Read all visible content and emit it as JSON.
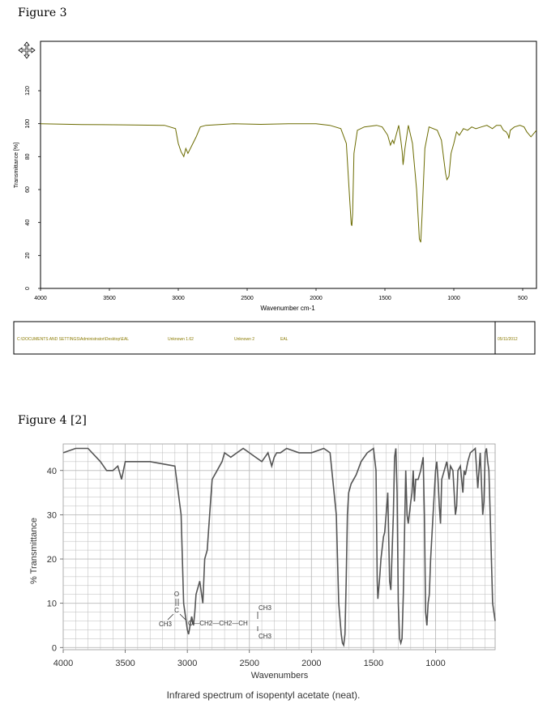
{
  "figure3": {
    "caption": "Figure 3",
    "chart_data": {
      "type": "line",
      "xlabel": "Wavenumber cm-1",
      "ylabel": "Transmittance [%]",
      "xlim": [
        4000,
        400
      ],
      "ylim": [
        0,
        150
      ],
      "x_reversed": true,
      "xticks": [
        "4000",
        "3500",
        "3000",
        "2500",
        "2000",
        "1500",
        "1000",
        "500"
      ],
      "yticks": [
        "0",
        "20",
        "40",
        "60",
        "80",
        "100",
        "120"
      ],
      "color": "#6b6b00",
      "series": [
        {
          "x": [
            4000,
            3700,
            3400,
            3100,
            3020,
            3000,
            2980,
            2960,
            2945,
            2930,
            2900,
            2870,
            2840,
            2800,
            2600,
            2400,
            2200,
            2000,
            1900,
            1820,
            1780,
            1760,
            1745,
            1740,
            1735,
            1725,
            1700,
            1650,
            1560,
            1520,
            1480,
            1460,
            1445,
            1435,
            1400,
            1385,
            1375,
            1368,
            1355,
            1330,
            1300,
            1270,
            1250,
            1240,
            1230,
            1210,
            1180,
            1120,
            1090,
            1060,
            1050,
            1035,
            1020,
            1000,
            980,
            960,
            930,
            900,
            870,
            840,
            800,
            760,
            720,
            690,
            660,
            640,
            620,
            605,
            600,
            590,
            560,
            520,
            490,
            470,
            440,
            400
          ],
          "y": [
            100,
            99.5,
            99.3,
            99,
            97,
            88,
            83,
            80,
            85,
            82,
            87,
            92,
            98,
            99,
            100,
            99.6,
            100,
            100,
            99,
            97,
            88,
            60,
            39,
            38,
            45,
            82,
            96,
            98,
            99,
            98,
            93,
            87,
            90,
            88,
            99,
            90,
            83,
            75,
            85,
            99,
            88,
            60,
            30,
            28,
            45,
            85,
            98,
            96,
            90,
            70,
            66,
            68,
            82,
            88,
            95,
            93,
            97,
            96,
            98,
            97,
            98,
            99,
            97,
            99,
            99,
            96,
            95,
            93,
            91,
            96,
            98,
            99,
            98,
            95,
            92,
            96
          ]
        }
      ]
    },
    "footer": {
      "path": "C:\\DOCUMENTS AND SETTINGS\\Administrator\\Desktop\\EAL",
      "sample": "Unknown 1.62",
      "unknown": "Unknown 2",
      "name": "EAL",
      "date": "05/11/2012"
    }
  },
  "figure4": {
    "caption": "Figure 4 [2]",
    "chart_data": {
      "type": "line",
      "xlabel": "Wavenumbers",
      "ylabel": "% Transmittance",
      "xlim": [
        4000,
        520
      ],
      "ylim": [
        -0.5,
        46
      ],
      "x_reversed": true,
      "xticks": [
        "4000",
        "3500",
        "3000",
        "2500",
        "2000",
        "1500",
        "1000"
      ],
      "yticks": [
        "0",
        "10",
        "20",
        "30",
        "40"
      ],
      "color": "#555555",
      "series": [
        {
          "x": [
            4000,
            3900,
            3800,
            3700,
            3650,
            3600,
            3560,
            3530,
            3500,
            3470,
            3450,
            3400,
            3300,
            3100,
            3050,
            3030,
            3000,
            2990,
            2965,
            2950,
            2940,
            2930,
            2900,
            2875,
            2860,
            2840,
            2820,
            2800,
            2760,
            2720,
            2700,
            2650,
            2600,
            2550,
            2500,
            2450,
            2400,
            2350,
            2320,
            2300,
            2280,
            2250,
            2200,
            2100,
            2000,
            1900,
            1850,
            1800,
            1780,
            1760,
            1750,
            1740,
            1730,
            1720,
            1710,
            1700,
            1680,
            1660,
            1640,
            1600,
            1550,
            1500,
            1480,
            1470,
            1465,
            1450,
            1440,
            1420,
            1410,
            1390,
            1385,
            1370,
            1360,
            1340,
            1330,
            1320,
            1310,
            1300,
            1290,
            1280,
            1270,
            1260,
            1240,
            1230,
            1220,
            1200,
            1190,
            1180,
            1170,
            1160,
            1140,
            1120,
            1100,
            1090,
            1080,
            1070,
            1060,
            1050,
            1040,
            1020,
            1000,
            990,
            980,
            970,
            960,
            950,
            930,
            910,
            890,
            880,
            860,
            840,
            830,
            820,
            800,
            780,
            770,
            760,
            740,
            720,
            680,
            660,
            640,
            620,
            610,
            600,
            590,
            580,
            570,
            560,
            540,
            520
          ],
          "y": [
            44,
            45,
            45,
            42,
            40,
            40,
            41,
            38,
            42,
            42,
            42,
            42,
            42,
            41,
            30,
            10,
            4,
            3,
            7,
            5,
            8,
            12,
            15,
            10,
            20,
            22,
            30,
            38,
            40,
            42,
            44,
            43,
            44,
            45,
            44,
            43,
            42,
            44,
            41,
            43,
            44,
            44,
            45,
            44,
            44,
            45,
            44,
            30,
            10,
            3,
            1,
            0.5,
            3,
            15,
            30,
            35,
            37,
            38,
            39,
            42,
            44,
            45,
            40,
            15,
            11,
            16,
            20,
            25,
            26,
            33,
            35,
            15,
            13,
            30,
            43,
            45,
            35,
            10,
            2,
            1,
            2,
            12,
            40,
            30,
            28,
            33,
            35,
            40,
            33,
            38,
            38,
            40,
            43,
            30,
            8,
            5,
            10,
            12,
            20,
            30,
            40,
            42,
            38,
            32,
            28,
            38,
            40,
            42,
            38,
            41,
            40,
            30,
            32,
            40,
            41,
            35,
            40,
            39,
            42,
            44,
            45,
            36,
            44,
            30,
            33,
            44,
            45,
            42,
            40,
            30,
            10,
            6
          ]
        }
      ],
      "structure": {
        "carbonyl_o": "O",
        "ester_label": "C",
        "methyl_left": "CH3",
        "chain": "O—CH2—CH2—CH",
        "methyl_top": "CH3",
        "methyl_bottom": "CH3"
      }
    },
    "bottom_caption": "Infrared spectrum of isopentyl acetate (neat)."
  }
}
